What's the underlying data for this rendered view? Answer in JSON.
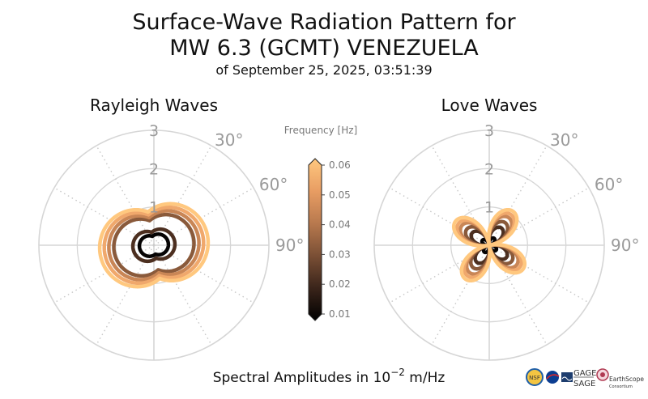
{
  "chart_data": [
    {
      "type": "polar-line",
      "panel": "rayleigh",
      "title": "Rayleigh Waves",
      "radial_ticks": [
        "1",
        "2",
        "3"
      ],
      "rlim": [
        0,
        3
      ],
      "angle_ticks": [
        "30°",
        "60°",
        "90°"
      ],
      "pattern": "two-lobed, lobes toward ~80° and ~260° azimuth",
      "series": [
        {
          "frequency": 0.01,
          "color": "#060404",
          "max_amplitude": 0.38
        },
        {
          "frequency": 0.02,
          "color": "#4c2f20",
          "max_amplitude": 0.55
        },
        {
          "frequency": 0.03,
          "color": "#8a5a3b",
          "max_amplitude": 1.05
        },
        {
          "frequency": 0.04,
          "color": "#c98656",
          "max_amplitude": 1.18
        },
        {
          "frequency": 0.05,
          "color": "#f0a86c",
          "max_amplitude": 1.3
        },
        {
          "frequency": 0.06,
          "color": "#ffc87f",
          "max_amplitude": 1.42
        }
      ]
    },
    {
      "type": "polar-line",
      "panel": "love",
      "title": "Love Waves",
      "radial_ticks": [
        "1",
        "2",
        "3"
      ],
      "rlim": [
        0,
        3
      ],
      "angle_ticks": [
        "30°",
        "60°",
        "90°"
      ],
      "pattern": "four-lobed, lobes toward ~35°, ~125°, ~215°, ~305° azimuth",
      "series": [
        {
          "frequency": 0.01,
          "color": "#060404",
          "max_amplitude": 0.22
        },
        {
          "frequency": 0.02,
          "color": "#4c2f20",
          "max_amplitude": 0.55
        },
        {
          "frequency": 0.03,
          "color": "#8a5a3b",
          "max_amplitude": 0.72
        },
        {
          "frequency": 0.04,
          "color": "#c98656",
          "max_amplitude": 0.88
        },
        {
          "frequency": 0.05,
          "color": "#f0a86c",
          "max_amplitude": 0.98
        },
        {
          "frequency": 0.06,
          "color": "#ffc87f",
          "max_amplitude": 1.08
        }
      ]
    }
  ],
  "title": {
    "line1": "Surface-Wave Radiation Pattern for",
    "line2": "MW 6.3 (GCMT) VENEZUELA",
    "line3": "of September 25, 2025, 03:51:39"
  },
  "colorbar": {
    "title": "Frequency [Hz]",
    "ticks": [
      "0.06",
      "0.05",
      "0.04",
      "0.03",
      "0.02",
      "0.01"
    ],
    "range": [
      0.01,
      0.06
    ],
    "colormap": [
      "#000000",
      "#3a241a",
      "#7a4f35",
      "#b8794e",
      "#e89d63",
      "#ffc87f"
    ]
  },
  "footer": {
    "prefix": "Spectral Amplitudes in ",
    "power_base": "10",
    "power_exp": "−2",
    "unit": " m/Hz"
  },
  "logos": {
    "nsf": "NSF",
    "gage": "GAGE",
    "sage": "SAGE",
    "earthscope": "EarthScope",
    "consortium": "Consortium"
  },
  "colors": {
    "grid": "#d6d6d6",
    "axis_text": "#9a9a9a"
  }
}
